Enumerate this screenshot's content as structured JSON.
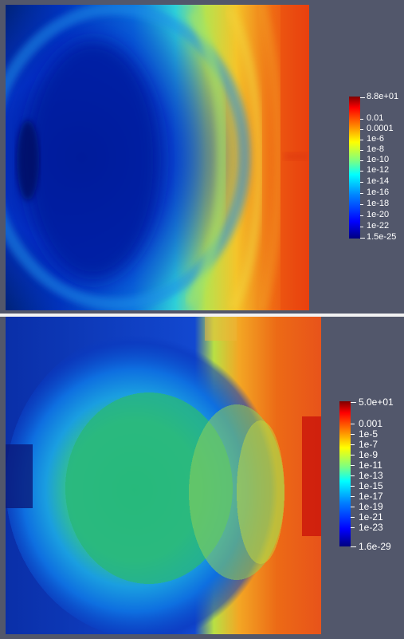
{
  "top_plot": {
    "colorbar_labels": [
      "8.8e+01",
      "0.01",
      "0.0001",
      "1e-6",
      "1e-8",
      "1e-10",
      "1e-12",
      "1e-14",
      "1e-16",
      "1e-18",
      "1e-20",
      "1e-22",
      "1.5e-25"
    ]
  },
  "bottom_plot": {
    "colorbar_labels": [
      "5.0e+01",
      "0.001",
      "1e-5",
      "1e-7",
      "1e-9",
      "1e-11",
      "1e-13",
      "1e-15",
      "1e-17",
      "1e-19",
      "1e-21",
      "1e-23",
      "1.6e-29"
    ]
  },
  "colors": {
    "background": "#52576b",
    "separator": "#f2f2f2",
    "colormap": [
      "#00007f",
      "#0000ff",
      "#007fff",
      "#00ffff",
      "#7fff7f",
      "#ffff00",
      "#ff7f00",
      "#ff0000",
      "#7f0000"
    ]
  }
}
